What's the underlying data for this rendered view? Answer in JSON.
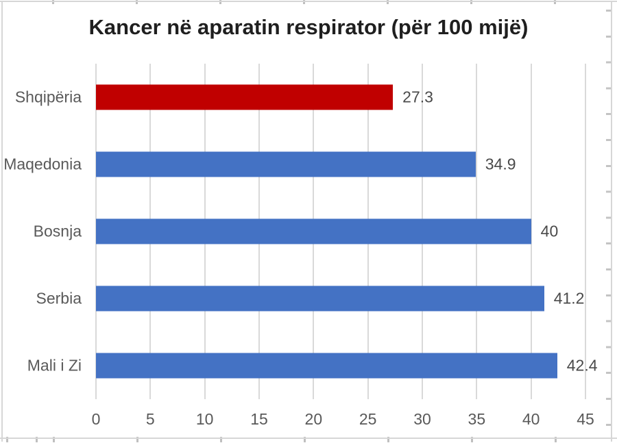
{
  "chart_data": {
    "type": "bar",
    "orientation": "horizontal",
    "title": "Kancer në aparatin respirator (për 100 mijë)",
    "categories": [
      "Shqipëria",
      "Maqedonia",
      "Bosnja",
      "Serbia",
      "Mali i Zi"
    ],
    "values": [
      27.3,
      34.9,
      40,
      41.2,
      42.4
    ],
    "value_labels": [
      "27.3",
      "34.9",
      "40",
      "41.2",
      "42.4"
    ],
    "bar_colors": [
      "#C00000",
      "#4472C4",
      "#4472C4",
      "#4472C4",
      "#4472C4"
    ],
    "x_ticks": [
      0,
      5,
      10,
      15,
      20,
      25,
      30,
      35,
      40,
      45
    ],
    "xlim": [
      0,
      45
    ],
    "xlabel": "",
    "ylabel": "",
    "grid": true,
    "legend": false
  },
  "colors": {
    "highlight_red": "#C00000",
    "accent_blue": "#4472C4",
    "gridline": "#d9d9d9",
    "axis_text": "#595959",
    "data_label_text": "#4a4a4a",
    "title_text": "#1f1f1f",
    "sheet_gridline": "#d6d6d6"
  }
}
